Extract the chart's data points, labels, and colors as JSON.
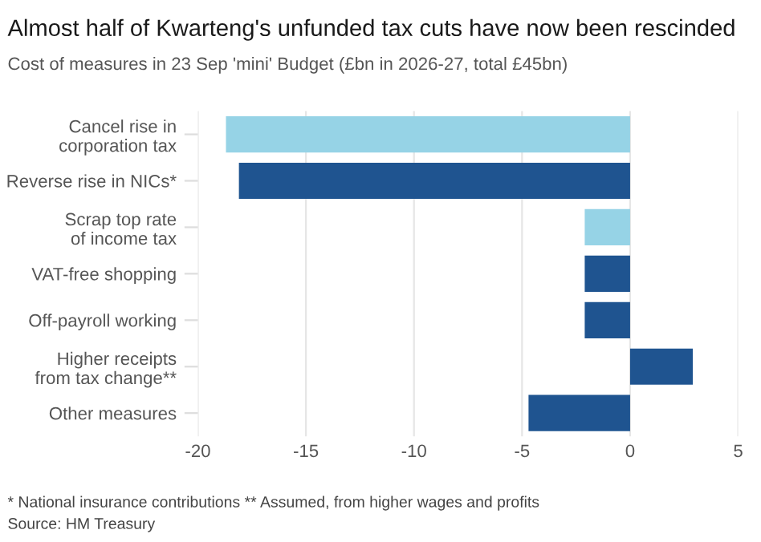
{
  "chart_data": {
    "type": "bar",
    "orientation": "horizontal",
    "title": "Almost half of Kwarteng's unfunded tax cuts have now been rescinded",
    "subtitle": "Cost of measures in 23 Sep 'mini' Budget (£bn in 2026-27, total £45bn)",
    "categories": [
      "Cancel rise in\ncorporation tax",
      "Reverse rise in NICs*",
      "Scrap top rate\nof income tax",
      "VAT-free shopping",
      "Off-payroll working",
      "Higher receipts\nfrom tax change**",
      "Other measures"
    ],
    "values": [
      -18.7,
      -18.1,
      -2.1,
      -2.1,
      -2.1,
      2.9,
      -4.7
    ],
    "colors": [
      "#96d3e6",
      "#1f5490",
      "#96d3e6",
      "#1f5490",
      "#1f5490",
      "#1f5490",
      "#1f5490"
    ],
    "xlim": [
      -20,
      5
    ],
    "xticks": [
      -20,
      -15,
      -10,
      -5,
      0,
      5
    ],
    "grid": "x",
    "annotations": [
      "* National insurance contributions ** Assumed, from higher wages and profits",
      "Source: HM Treasury"
    ]
  }
}
